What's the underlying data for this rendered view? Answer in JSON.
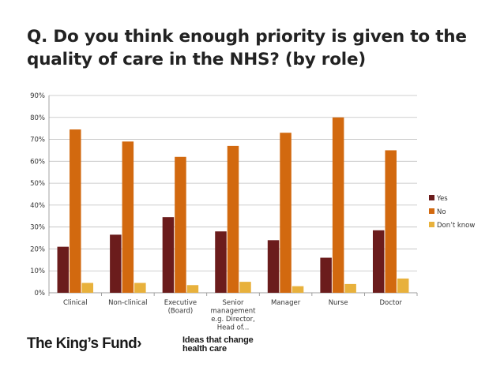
{
  "title": {
    "line1": "Q. Do you think enough priority is given to the",
    "line2": "quality of care in the NHS? (by role)"
  },
  "chart_data": {
    "type": "bar",
    "title": "Q. Do you think enough priority is given to the quality of care in the NHS? (by role)",
    "xlabel": "",
    "ylabel": "",
    "ylim": [
      0,
      90
    ],
    "y_ticks": [
      "0%",
      "10%",
      "20%",
      "30%",
      "40%",
      "50%",
      "60%",
      "70%",
      "80%",
      "90%"
    ],
    "grid": true,
    "legend_position": "right",
    "categories": [
      [
        "Clinical"
      ],
      [
        "Non-clinical"
      ],
      [
        "Executive",
        "(Board)"
      ],
      [
        "Senior",
        "management",
        "e.g. Director,",
        "Head of..."
      ],
      [
        "Manager"
      ],
      [
        "Nurse"
      ],
      [
        "Doctor"
      ]
    ],
    "series": [
      {
        "name": "Yes",
        "color": "#6b1c1c",
        "values": [
          21,
          26.5,
          34.5,
          28,
          24,
          16,
          28.5
        ]
      },
      {
        "name": "No",
        "color": "#d2690f",
        "values": [
          74.5,
          69,
          62,
          67,
          73,
          80,
          65
        ]
      },
      {
        "name": "Don’t know",
        "color": "#e8b13c",
        "values": [
          4.5,
          4.5,
          3.5,
          5,
          3,
          4,
          6.5
        ]
      }
    ]
  },
  "footer": {
    "logo": "The King’s Fund›",
    "tagline_line1": "Ideas that change",
    "tagline_line2": "health care"
  }
}
